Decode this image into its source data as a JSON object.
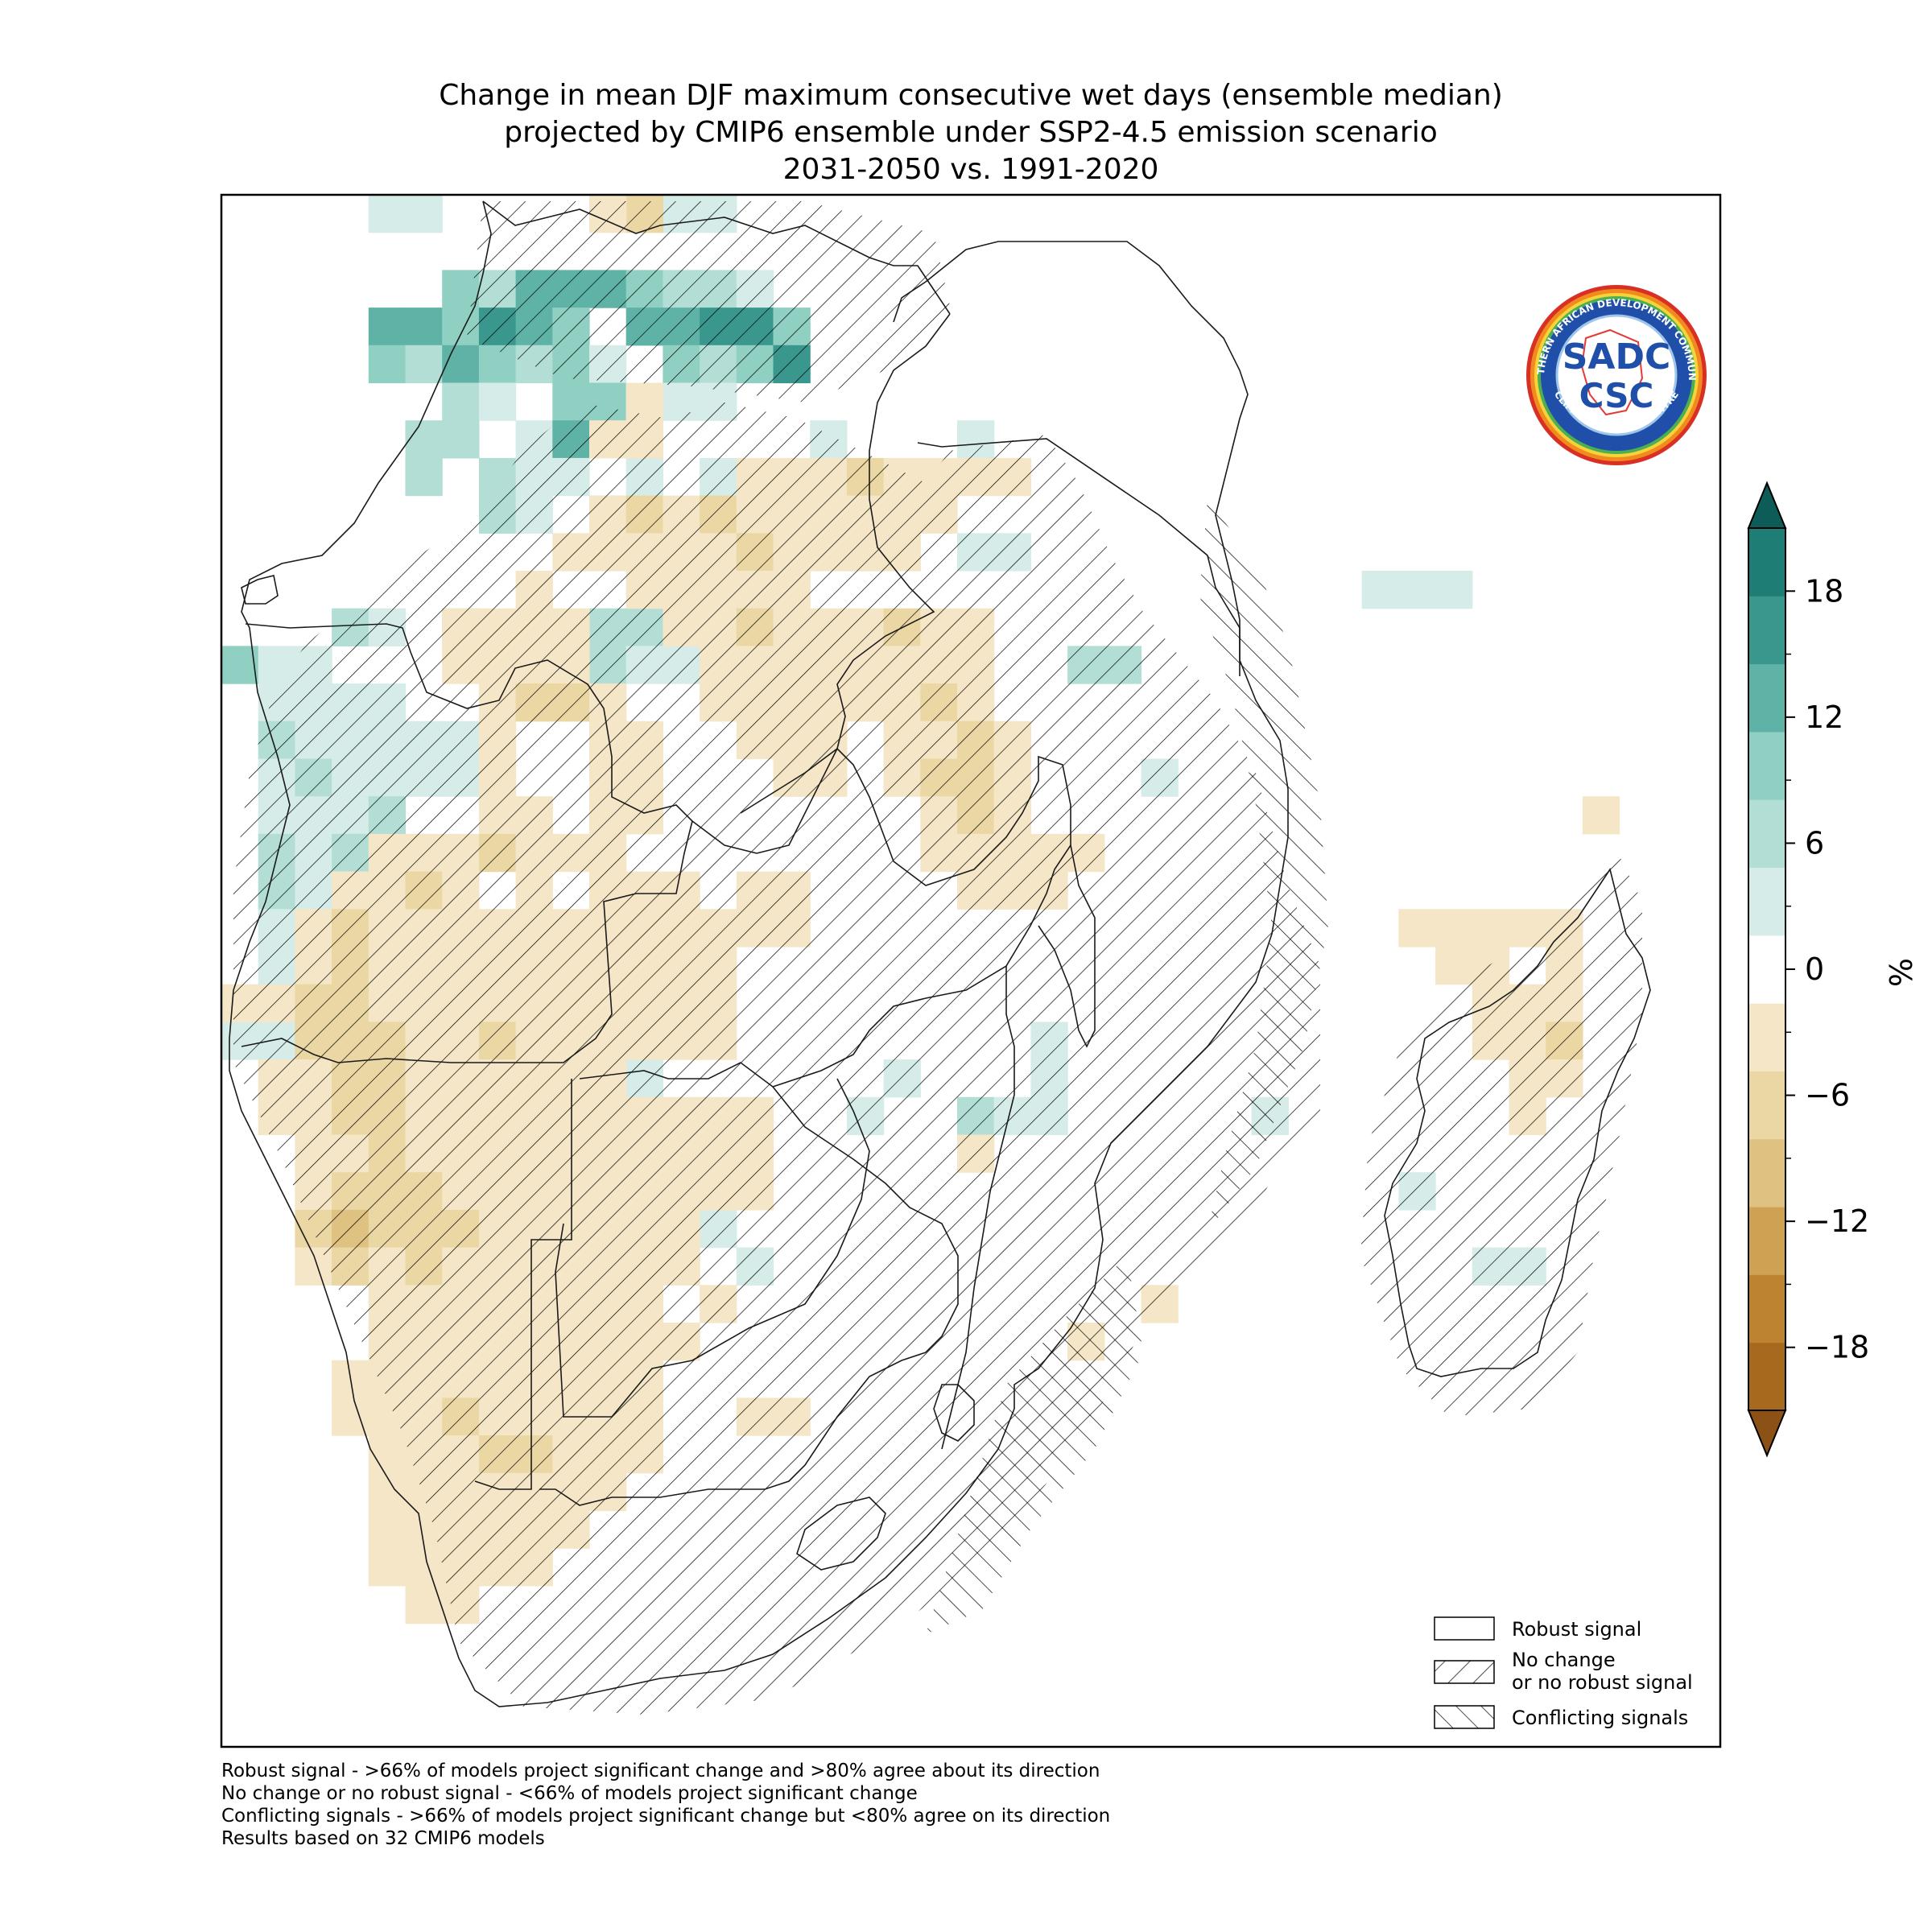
{
  "title": {
    "line1": "Change in mean DJF maximum consecutive wet days (ensemble median)",
    "line2": "projected by CMIP6 ensemble under SSP2-4.5 emission scenario",
    "line3": "2031-2050 vs. 1991-2020"
  },
  "logo": {
    "text_top": "SOUTHERN AFRICAN DEVELOPMENT COMMUNITY",
    "text_bottom": "CLIMATE SERVICES CENTRE",
    "sadc": "SADC",
    "csc": "CSC"
  },
  "legend": {
    "robust": "Robust signal",
    "no_change_1": "No change",
    "no_change_2": "or no robust signal",
    "conflicting": "Conflicting signals"
  },
  "colorbar": {
    "unit": "%",
    "ticks": [
      "18",
      "12",
      "6",
      "0",
      "−6",
      "−12",
      "−18"
    ],
    "levels": [
      -21,
      -18,
      -15,
      -12,
      -9,
      -6,
      -3,
      3,
      6,
      9,
      12,
      15,
      18,
      21
    ],
    "colors": [
      "#a6691d",
      "#bd8331",
      "#cfa152",
      "#dfc181",
      "#ebd7a4",
      "#f4e6c6",
      "#ffffff",
      "#d5ece8",
      "#b2ded6",
      "#8fd0c3",
      "#5fb3a6",
      "#3a978d",
      "#1e7d75"
    ],
    "under_color": "#8c5215",
    "over_color": "#0d5c57"
  },
  "notes": {
    "line1": "Robust signal - >66% of models project significant change and >80% agree about its direction",
    "line2": "No change or no robust signal - <66% of models project significant change",
    "line3": "Conflicting signals - >66% of models project significant change but <80% agree on its direction",
    "line4": "Results based on 32 CMIP6 models"
  },
  "map_data": {
    "variable": "Change in mean DJF maximum consecutive wet days",
    "units": "%"
  }
}
